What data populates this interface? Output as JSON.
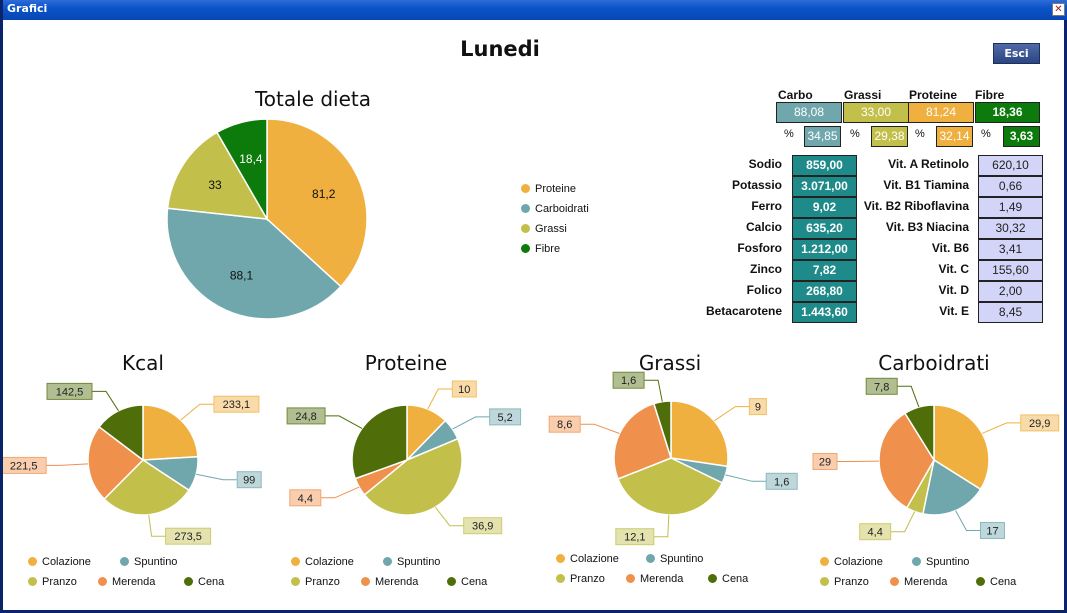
{
  "window": {
    "title": "Grafici"
  },
  "header": {
    "title": "Lunedi",
    "exit_label": "Esci"
  },
  "colors": {
    "colazione": "#efb03f",
    "spuntino": "#6fa7ad",
    "pranzo": "#c2bf4a",
    "merenda": "#ef914d",
    "cena": "#4f6e0a",
    "proteine": "#efb03f",
    "carboidrati": "#6fa7ad",
    "grassi": "#c2bf4a",
    "fibre": "#0c7b0c"
  },
  "macros": {
    "headers": [
      "Carbo",
      "Grassi",
      "Proteine",
      "Fibre"
    ],
    "values": [
      "88,08",
      "33,00",
      "81,24",
      "18,36"
    ],
    "percent_sign": "%",
    "percents": [
      "34,85",
      "29,38",
      "32,14",
      "3,63"
    ]
  },
  "minerals": [
    {
      "label": "Sodio",
      "value": "859,00"
    },
    {
      "label": "Potassio",
      "value": "3.071,00"
    },
    {
      "label": "Ferro",
      "value": "9,02"
    },
    {
      "label": "Calcio",
      "value": "635,20"
    },
    {
      "label": "Fosforo",
      "value": "1.212,00"
    },
    {
      "label": "Zinco",
      "value": "7,82"
    },
    {
      "label": "Folico",
      "value": "268,80"
    },
    {
      "label": "Betacarotene",
      "value": "1.443,60"
    }
  ],
  "vitamins": [
    {
      "label": "Vit. A Retinolo",
      "value": "620,10"
    },
    {
      "label": "Vit. B1 Tiamina",
      "value": "0,66"
    },
    {
      "label": "Vit. B2 Riboflavina",
      "value": "1,49"
    },
    {
      "label": "Vit. B3 Niacina",
      "value": "30,32"
    },
    {
      "label": "Vit. B6",
      "value": "3,41"
    },
    {
      "label": "Vit. C",
      "value": "155,60"
    },
    {
      "label": "Vit. D",
      "value": "2,00"
    },
    {
      "label": "Vit. E",
      "value": "8,45"
    }
  ],
  "chart_data": [
    {
      "type": "pie",
      "title": "Totale dieta",
      "legend_position": "right",
      "categories": [
        "Proteine",
        "Carboidrati",
        "Grassi",
        "Fibre"
      ],
      "values": [
        81.2,
        88.1,
        33,
        18.4
      ],
      "data_labels": [
        "81,2",
        "88,1",
        "33",
        "18,4"
      ]
    },
    {
      "type": "pie",
      "title": "Kcal",
      "legend_position": "bottom",
      "categories": [
        "Colazione",
        "Spuntino",
        "Pranzo",
        "Merenda",
        "Cena"
      ],
      "values": [
        233.1,
        99,
        273.5,
        221.5,
        142.5
      ],
      "data_labels": [
        "233,1",
        "99",
        "273,5",
        "221,5",
        "142,5"
      ]
    },
    {
      "type": "pie",
      "title": "Proteine",
      "legend_position": "bottom",
      "categories": [
        "Colazione",
        "Spuntino",
        "Pranzo",
        "Merenda",
        "Cena"
      ],
      "values": [
        10,
        5.2,
        36.9,
        4.4,
        24.8
      ],
      "data_labels": [
        "10",
        "5,2",
        "36,9",
        "4,4",
        "24,8"
      ]
    },
    {
      "type": "pie",
      "title": "Grassi",
      "legend_position": "bottom",
      "categories": [
        "Colazione",
        "Spuntino",
        "Pranzo",
        "Merenda",
        "Cena"
      ],
      "values": [
        9,
        1.6,
        12.1,
        8.6,
        1.6
      ],
      "data_labels": [
        "9",
        "1,6",
        "12,1",
        "8,6",
        "1,6"
      ]
    },
    {
      "type": "pie",
      "title": "Carboidrati",
      "legend_position": "bottom",
      "categories": [
        "Colazione",
        "Spuntino",
        "Pranzo",
        "Merenda",
        "Cena"
      ],
      "values": [
        29.9,
        17,
        4.4,
        29,
        7.8
      ],
      "data_labels": [
        "29,9",
        "17",
        "4,4",
        "29",
        "7,8"
      ]
    }
  ]
}
